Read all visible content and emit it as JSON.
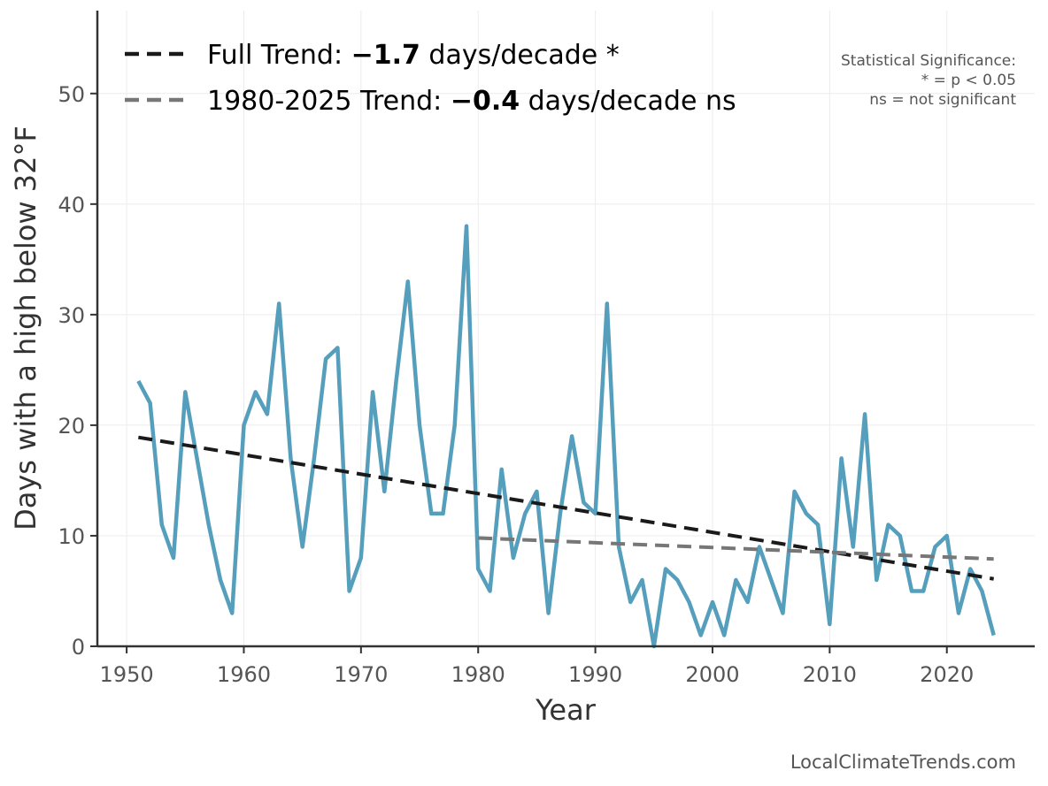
{
  "chart_data": {
    "type": "line",
    "xlabel": "Year",
    "ylabel": "Days with a high below 32°F",
    "xlim": [
      1947.5,
      2027.5
    ],
    "ylim": [
      0,
      57.5
    ],
    "x_ticks": [
      1950,
      1960,
      1970,
      1980,
      1990,
      2000,
      2010,
      2020
    ],
    "y_ticks": [
      0,
      10,
      20,
      30,
      40,
      50
    ],
    "grid": true,
    "series": [
      {
        "name": "Days with a high below 32°F",
        "color": "#559fbd",
        "x": [
          1951,
          1952,
          1953,
          1954,
          1955,
          1956,
          1957,
          1958,
          1959,
          1960,
          1961,
          1962,
          1963,
          1964,
          1965,
          1966,
          1967,
          1968,
          1969,
          1970,
          1971,
          1972,
          1973,
          1974,
          1975,
          1976,
          1977,
          1978,
          1979,
          1980,
          1981,
          1982,
          1983,
          1984,
          1985,
          1986,
          1987,
          1988,
          1989,
          1990,
          1991,
          1992,
          1993,
          1994,
          1995,
          1996,
          1997,
          1998,
          1999,
          2000,
          2001,
          2002,
          2003,
          2004,
          2005,
          2006,
          2007,
          2008,
          2009,
          2010,
          2011,
          2012,
          2013,
          2014,
          2015,
          2016,
          2017,
          2018,
          2019,
          2020,
          2021,
          2022,
          2023,
          2024
        ],
        "values": [
          24,
          22,
          11,
          8,
          23,
          17,
          11,
          6,
          3,
          20,
          23,
          21,
          31,
          17,
          9,
          17,
          26,
          27,
          5,
          8,
          23,
          14,
          24,
          33,
          20,
          12,
          12,
          20,
          38,
          7,
          5,
          16,
          8,
          12,
          14,
          3,
          12,
          19,
          13,
          12,
          31,
          9,
          4,
          6,
          0,
          7,
          6,
          4,
          1,
          4,
          1,
          6,
          4,
          9,
          6,
          3,
          14,
          12,
          11,
          2,
          17,
          9,
          21,
          6,
          11,
          10,
          5,
          5,
          9,
          10,
          3,
          7,
          5,
          1
        ]
      }
    ],
    "trends": [
      {
        "name": "Full Trend",
        "color": "#1a1a1a",
        "x": [
          1951,
          2024
        ],
        "values": [
          18.9,
          6.1
        ]
      },
      {
        "name": "1980-2025 Trend",
        "color": "#777777",
        "x": [
          1980,
          2024
        ],
        "values": [
          9.8,
          7.9
        ]
      }
    ],
    "legend": {
      "placement": "top-left",
      "entries": [
        {
          "prefix": "Full Trend: ",
          "value": "−1.7",
          "suffix": " days/decade *"
        },
        {
          "prefix": "1980-2025 Trend: ",
          "value": "−0.4",
          "suffix": " days/decade ns"
        }
      ]
    },
    "significance_note": [
      "Statistical Significance:",
      "* = p < 0.05",
      "ns = not significant"
    ],
    "credit": "LocalClimateTrends.com"
  }
}
